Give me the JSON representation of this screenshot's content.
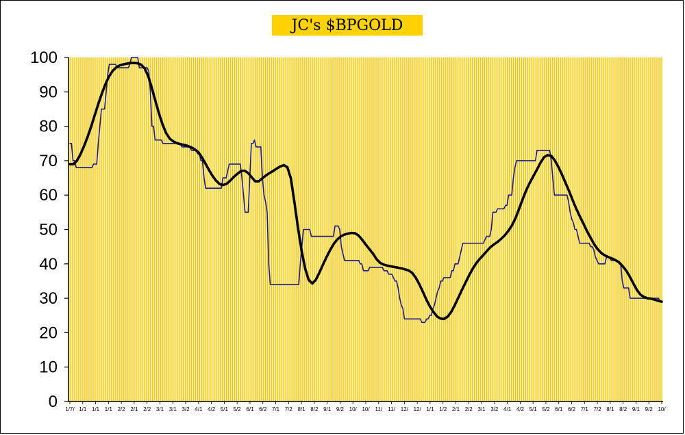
{
  "chart_data": {
    "type": "line",
    "title": "JC's $BPGOLD",
    "xlabel": "",
    "ylabel": "",
    "ylim": [
      0,
      100
    ],
    "yticks": [
      0,
      10,
      20,
      30,
      40,
      50,
      60,
      70,
      80,
      90,
      100
    ],
    "grid": true,
    "legend": "none",
    "colors": {
      "plot_background": "#FFEFA8",
      "gridline": "#F2C200",
      "title_background": "#FFD200",
      "series_raw": "#1B1B8C",
      "series_smoothed": "#000000"
    },
    "x_tick_labels": [
      "1/7/",
      "1/1",
      "1/1",
      "1/1",
      "2/2",
      "2/1",
      "2/2",
      "3/1",
      "3/1",
      "3/2",
      "4/1",
      "4/2",
      "5/1",
      "5/2",
      "6/1",
      "6/2",
      "7/1",
      "7/2",
      "8/1",
      "8/2",
      "9/1",
      "9/2",
      "10/",
      "10/",
      "11/",
      "11/",
      "12/",
      "12/",
      "1/1",
      "1/2",
      "2/1",
      "2/2",
      "3/1",
      "3/2",
      "4/1",
      "4/2",
      "5/1",
      "5/2",
      "6/1",
      "6/2",
      "7/1",
      "7/2",
      "8/1",
      "8/2",
      "9/1",
      "9/2",
      "10/"
    ],
    "series": [
      {
        "values": [
          75,
          75,
          70,
          70,
          68,
          68,
          68,
          68,
          68,
          68,
          68,
          68,
          68,
          68,
          68,
          69,
          69,
          69,
          75,
          80,
          85,
          85,
          85,
          90,
          95,
          98,
          98,
          98,
          98,
          98,
          97,
          97,
          97,
          97,
          97,
          97,
          97,
          97,
          98,
          100,
          100,
          100,
          100,
          100,
          97,
          97,
          97,
          97,
          97,
          97,
          96,
          90,
          80,
          80,
          76,
          76,
          76,
          76,
          76,
          75,
          75,
          75,
          75,
          75,
          75,
          75,
          75,
          75,
          75,
          75,
          75,
          74,
          74,
          74,
          74,
          74,
          74,
          73,
          73,
          73,
          73,
          72,
          72,
          70,
          70,
          65,
          62,
          62,
          62,
          62,
          62,
          62,
          62,
          62,
          62,
          62,
          62,
          65,
          65,
          65,
          67,
          69,
          69,
          69,
          69,
          69,
          69,
          69,
          69,
          65,
          60,
          55,
          55,
          55,
          65,
          75,
          75,
          76,
          74,
          74,
          74,
          74,
          65,
          60,
          58,
          55,
          40,
          34,
          34,
          34,
          34,
          34,
          34,
          34,
          34,
          34,
          34,
          34,
          34,
          34,
          34,
          34,
          34,
          34,
          34,
          34,
          40,
          45,
          50,
          50,
          50,
          50,
          50,
          48,
          48,
          48,
          48,
          48,
          48,
          48,
          48,
          48,
          48,
          48,
          48,
          48,
          48,
          48,
          51,
          51,
          51,
          50,
          45,
          43,
          41,
          41,
          41,
          41,
          41,
          41,
          41,
          41,
          41,
          41,
          40,
          40,
          38,
          38,
          38,
          38,
          39,
          39,
          39,
          39,
          39,
          39,
          39,
          39,
          39,
          38,
          38,
          38,
          37,
          37,
          37,
          36,
          35,
          35,
          33,
          30,
          28,
          27,
          24,
          24,
          24,
          24,
          24,
          24,
          24,
          24,
          24,
          24,
          24,
          23,
          23,
          23,
          24,
          24,
          25,
          25,
          27,
          28,
          30,
          32,
          33,
          35,
          35,
          36,
          36,
          36,
          36,
          36,
          38,
          38,
          40,
          40,
          40,
          42,
          44,
          46,
          46,
          46,
          46,
          46,
          46,
          46,
          46,
          46,
          46,
          46,
          46,
          46,
          46,
          47,
          48,
          48,
          48,
          50,
          55,
          55,
          55,
          56,
          56,
          56,
          56,
          56,
          57,
          57,
          60,
          60,
          60,
          65,
          68,
          70,
          70,
          70,
          70,
          70,
          70,
          70,
          70,
          70,
          70,
          70,
          70,
          70,
          73,
          73,
          73,
          73,
          73,
          73,
          73,
          73,
          73,
          70,
          65,
          60,
          60,
          60,
          60,
          60,
          60,
          60,
          60,
          60,
          58,
          55,
          53,
          52,
          50,
          50,
          48,
          46,
          46,
          46,
          46,
          46,
          46,
          46,
          45,
          45,
          44,
          42,
          41,
          40,
          40,
          40,
          40,
          40,
          42,
          42,
          42,
          41,
          41,
          41,
          41,
          41,
          40,
          40,
          35,
          33,
          33,
          33,
          33,
          30,
          30,
          30,
          30,
          30,
          30,
          30,
          30,
          30,
          30,
          30,
          30,
          30,
          30,
          30,
          30,
          30,
          30,
          30,
          29,
          29
        ]
      },
      {
        "values": [
          69.0,
          69.0,
          70.0,
          71.9,
          74.3,
          77.0,
          80.0,
          83.3,
          86.6,
          89.6,
          92.3,
          94.5,
          96.1,
          97.1,
          97.7,
          98.0,
          98.2,
          98.4,
          98.4,
          98.3,
          97.9,
          96.8,
          94.5,
          91.1,
          87.3,
          83.7,
          80.5,
          78.0,
          76.4,
          75.6,
          75.1,
          74.8,
          74.6,
          74.3,
          73.9,
          73.3,
          72.5,
          71.0,
          69.2,
          67.3,
          65.6,
          64.2,
          63.2,
          62.9,
          63.3,
          64.2,
          65.3,
          66.2,
          67.0,
          67.1,
          66.4,
          65.2,
          64.0,
          64.0,
          64.9,
          65.7,
          66.4,
          67.0,
          67.7,
          68.3,
          68.7,
          68.1,
          64.8,
          57.8,
          50.4,
          43.8,
          38.6,
          35.3,
          34.3,
          35.4,
          37.5,
          39.8,
          42.0,
          44.0,
          45.8,
          47.1,
          48.0,
          48.5,
          48.8,
          49.0,
          48.9,
          48.2,
          47.0,
          45.6,
          44.3,
          43.0,
          41.4,
          40.3,
          39.8,
          39.5,
          39.3,
          39.1,
          38.9,
          38.7,
          38.4,
          38.1,
          37.4,
          36.0,
          34.1,
          31.9,
          29.6,
          27.6,
          26.0,
          24.7,
          24.1,
          24.0,
          24.7,
          26.1,
          28.1,
          30.3,
          32.5,
          34.6,
          36.7,
          38.6,
          40.2,
          41.5,
          42.6,
          43.8,
          44.9,
          45.7,
          46.4,
          47.3,
          48.3,
          49.6,
          51.2,
          53.3,
          56.0,
          58.8,
          61.4,
          63.6,
          65.5,
          67.4,
          69.4,
          71.0,
          71.6,
          71.4,
          70.1,
          68.2,
          66.0,
          63.6,
          61.2,
          58.6,
          56.1,
          53.9,
          51.8,
          49.6,
          47.7,
          45.8,
          44.3,
          43.2,
          42.5,
          42.0,
          41.6,
          41.1,
          40.5,
          39.4,
          38.1,
          36.4,
          34.4,
          32.5,
          31.1,
          30.4,
          30.0,
          29.9,
          29.6,
          29.3,
          29.0
        ]
      }
    ]
  }
}
